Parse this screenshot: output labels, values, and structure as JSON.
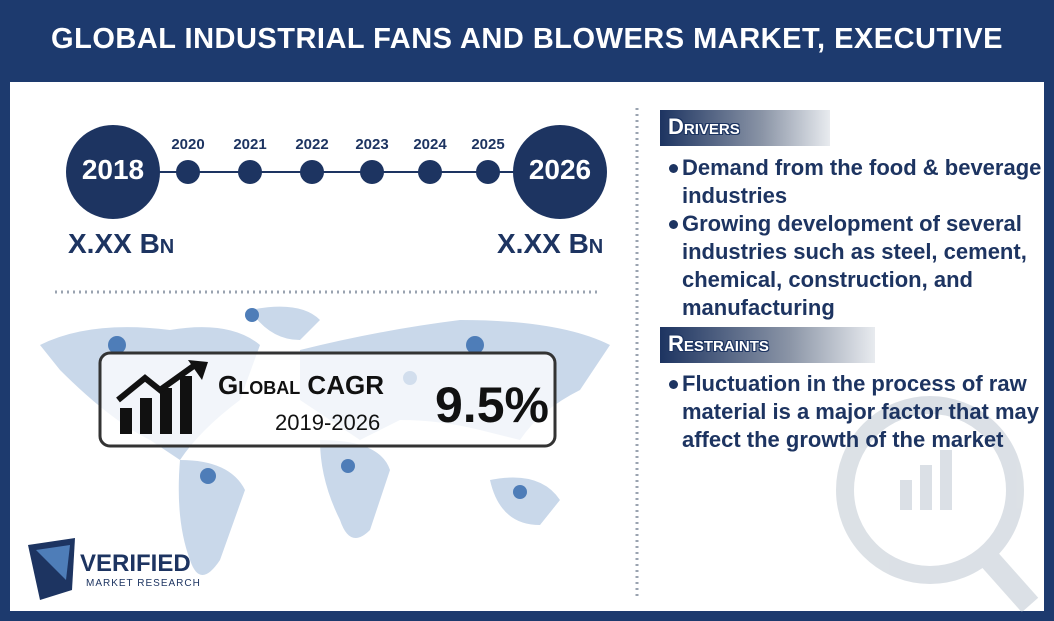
{
  "header": {
    "title": "GLOBAL INDUSTRIAL FANS AND BLOWERS MARKET, EXECUTIVE SUMMARY"
  },
  "timeline": {
    "start": {
      "year": "2018",
      "value": "X.XX Bn"
    },
    "years": [
      "2020",
      "2021",
      "2022",
      "2023",
      "2024",
      "2025"
    ],
    "end": {
      "year": "2026",
      "value": "X.XX Bn"
    }
  },
  "cagr": {
    "label": "Global CAGR",
    "period": "2019-2026",
    "value": "9.5%"
  },
  "drivers": {
    "title": "Drivers",
    "items": [
      "Demand from the food & beverage industries",
      "Growing development of several industries such as steel, cement, chemical, construction, and manufacturing"
    ]
  },
  "restraints": {
    "title": "Restraints",
    "items": [
      "Fluctuation in the process of raw material is a major factor that may affect the growth of the market"
    ]
  },
  "logo": {
    "name": "VERIFIED",
    "tagline": "MARKET RESEARCH"
  }
}
